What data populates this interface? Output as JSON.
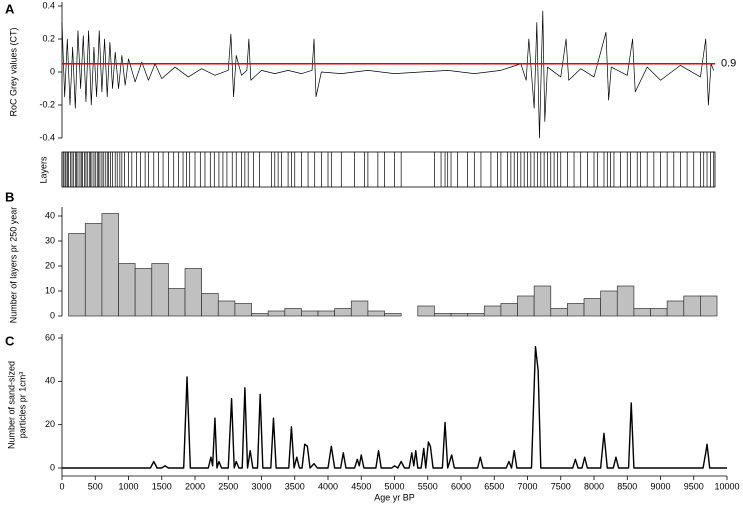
{
  "chart_data": [
    {
      "type": "line",
      "panel_label": "A",
      "ylabel": "RoC Grey values (CT)",
      "color": "#000000",
      "threshold": 0.05,
      "threshold_color": "#e00000",
      "annotation": "0.9",
      "xlim": [
        0,
        10000
      ],
      "ylim": [
        -0.4,
        0.4
      ],
      "yticks": [
        -0.4,
        -0.2,
        0,
        0.2,
        0.4
      ],
      "x": [
        0,
        40,
        80,
        120,
        160,
        200,
        240,
        280,
        320,
        360,
        400,
        440,
        480,
        520,
        560,
        600,
        640,
        680,
        720,
        760,
        800,
        850,
        900,
        950,
        1000,
        1100,
        1200,
        1300,
        1400,
        1500,
        1700,
        1900,
        2100,
        2300,
        2500,
        2540,
        2580,
        2620,
        2700,
        2780,
        2810,
        2840,
        3000,
        3200,
        3400,
        3600,
        3760,
        3790,
        3820,
        3900,
        4200,
        4600,
        5000,
        5400,
        5800,
        6200,
        6600,
        6900,
        6980,
        7020,
        7100,
        7140,
        7180,
        7230,
        7260,
        7300,
        7500,
        7580,
        7620,
        7800,
        8000,
        8180,
        8220,
        8260,
        8500,
        8580,
        8620,
        8800,
        9000,
        9300,
        9600,
        9680,
        9720,
        9760,
        9800
      ],
      "values": [
        0.3,
        -0.15,
        0.2,
        -0.2,
        0.15,
        -0.22,
        0.25,
        -0.1,
        0.22,
        -0.18,
        0.25,
        -0.2,
        0.15,
        -0.15,
        0.25,
        -0.12,
        0.2,
        -0.15,
        0.18,
        -0.1,
        0.12,
        -0.1,
        0.1,
        -0.08,
        0.08,
        -0.06,
        0.06,
        -0.05,
        0.05,
        -0.04,
        0.03,
        -0.03,
        0.02,
        -0.02,
        0.01,
        0.23,
        -0.15,
        0.1,
        -0.02,
        0.01,
        0.2,
        -0.05,
        0.01,
        -0.01,
        0.01,
        -0.01,
        0.01,
        0.2,
        -0.15,
        0,
        -0.01,
        0.01,
        -0.01,
        0,
        0.01,
        -0.01,
        0.01,
        0.05,
        -0.05,
        0.2,
        -0.22,
        0.3,
        -0.4,
        0.37,
        -0.3,
        0.03,
        -0.03,
        0.2,
        -0.05,
        0.02,
        -0.03,
        0.24,
        -0.17,
        0.03,
        -0.02,
        0.2,
        -0.12,
        0.03,
        -0.05,
        0.04,
        -0.03,
        0.2,
        -0.2,
        0.05,
        0.01
      ]
    },
    {
      "type": "rug",
      "ylabel": "Layers",
      "color": "#000000",
      "xlim": [
        0,
        10000
      ],
      "x": [
        0,
        20,
        45,
        60,
        85,
        100,
        130,
        150,
        170,
        200,
        220,
        240,
        270,
        290,
        310,
        340,
        360,
        380,
        410,
        430,
        450,
        480,
        500,
        530,
        550,
        570,
        600,
        620,
        650,
        680,
        700,
        730,
        760,
        800,
        830,
        870,
        900,
        940,
        1000,
        1050,
        1120,
        1180,
        1250,
        1300,
        1380,
        1450,
        1520,
        1600,
        1680,
        1750,
        1820,
        1870,
        1920,
        2000,
        2080,
        2150,
        2230,
        2290,
        2360,
        2420,
        2480,
        2560,
        2620,
        2700,
        2750,
        2800,
        2880,
        2970,
        3150,
        3200,
        3250,
        3300,
        3400,
        3450,
        3500,
        3600,
        3700,
        3800,
        3900,
        4000,
        4050,
        4200,
        4400,
        4550,
        4600,
        4750,
        4850,
        5000,
        5100,
        5600,
        5700,
        5760,
        5800,
        5850,
        5950,
        6100,
        6200,
        6300,
        6450,
        6550,
        6600,
        6700,
        6750,
        6800,
        6850,
        6900,
        6950,
        7000,
        7050,
        7100,
        7150,
        7200,
        7250,
        7300,
        7350,
        7400,
        7450,
        7500,
        7600,
        7700,
        7800,
        7900,
        8000,
        8050,
        8150,
        8200,
        8250,
        8300,
        8400,
        8500,
        8550,
        8650,
        8700,
        8800,
        8900,
        9000,
        9100,
        9200,
        9300,
        9400,
        9500,
        9600,
        9650,
        9700,
        9750,
        9800
      ]
    },
    {
      "type": "histogram",
      "panel_label": "B",
      "ylabel": "Number of layers pr 250 year",
      "color": "#c0c0c0",
      "xlim": [
        0,
        10000
      ],
      "ylim": [
        0,
        42
      ],
      "yticks": [
        0,
        10,
        20,
        30,
        40
      ],
      "bins": [
        100,
        350,
        600,
        850,
        1100,
        1350,
        1600,
        1850,
        2100,
        2350,
        2600,
        2850,
        3100,
        3350,
        3600,
        3850,
        4100,
        4350,
        4600,
        4850,
        5100,
        5350,
        5600,
        5850,
        6100,
        6350,
        6600,
        6850,
        7100,
        7350,
        7600,
        7850,
        8100,
        8350,
        8600,
        8850,
        9100,
        9350,
        9600,
        9850
      ],
      "values": [
        33,
        37,
        41,
        21,
        19,
        21,
        11,
        19,
        9,
        6,
        5,
        1,
        2,
        3,
        2,
        2,
        3,
        6,
        2,
        1,
        0,
        4,
        1,
        1,
        1,
        4,
        5,
        8,
        12,
        3,
        5,
        7,
        10,
        12,
        3,
        3,
        6,
        8,
        8
      ]
    },
    {
      "type": "line",
      "panel_label": "C",
      "ylabel": [
        "Number of sand-sized",
        "particles pr 1cm³"
      ],
      "xlabel": "Age yr BP",
      "color": "#000000",
      "xlim": [
        0,
        10000
      ],
      "ylim": [
        0,
        60
      ],
      "yticks": [
        0,
        20,
        40,
        60
      ],
      "xticks": [
        0,
        500,
        1000,
        1500,
        2000,
        2500,
        3000,
        3500,
        4000,
        4500,
        5000,
        5500,
        6000,
        6500,
        7000,
        7500,
        8000,
        8500,
        9000,
        9500,
        10000
      ],
      "x": [
        0,
        1330,
        1380,
        1430,
        1500,
        1550,
        1600,
        1830,
        1880,
        1930,
        2200,
        2240,
        2265,
        2300,
        2330,
        2360,
        2400,
        2500,
        2550,
        2590,
        2620,
        2660,
        2710,
        2750,
        2790,
        2830,
        2870,
        2940,
        2980,
        3020,
        3140,
        3180,
        3220,
        3410,
        3450,
        3490,
        3530,
        3570,
        3610,
        3650,
        3690,
        3730,
        3790,
        3840,
        4000,
        4050,
        4100,
        4190,
        4230,
        4270,
        4400,
        4440,
        4470,
        4500,
        4540,
        4720,
        4760,
        4800,
        4960,
        5000,
        5050,
        5100,
        5150,
        5220,
        5260,
        5290,
        5320,
        5350,
        5400,
        5440,
        5470,
        5510,
        5540,
        5580,
        5720,
        5760,
        5800,
        5860,
        5900,
        6250,
        6290,
        6330,
        6680,
        6720,
        6760,
        6800,
        6840,
        7060,
        7120,
        7160,
        7200,
        7680,
        7720,
        7760,
        7820,
        7860,
        7900,
        8100,
        8150,
        8200,
        8290,
        8330,
        8370,
        8520,
        8560,
        8600,
        9640,
        9680,
        9700,
        9740,
        10000
      ],
      "values": [
        0,
        0,
        3,
        0,
        0,
        1,
        0,
        0,
        42,
        0,
        0,
        5,
        1,
        23,
        0,
        3,
        0,
        0,
        32,
        0,
        3,
        0,
        0,
        37,
        0,
        8,
        0,
        0,
        34,
        0,
        0,
        23,
        0,
        0,
        19,
        0,
        5,
        0,
        0,
        11,
        10,
        0,
        2,
        0,
        0,
        10,
        0,
        0,
        7,
        0,
        0,
        4,
        1,
        6,
        0,
        0,
        8,
        0,
        0,
        1,
        0,
        3,
        0,
        0,
        7,
        1,
        8,
        0,
        0,
        9,
        0,
        12,
        10,
        0,
        0,
        21,
        0,
        6,
        0,
        0,
        5,
        0,
        0,
        3,
        0,
        8,
        0,
        0,
        56,
        45,
        0,
        0,
        4,
        0,
        0,
        5,
        0,
        0,
        16,
        0,
        0,
        5,
        0,
        0,
        30,
        0,
        0,
        7,
        11,
        0,
        0
      ]
    }
  ]
}
